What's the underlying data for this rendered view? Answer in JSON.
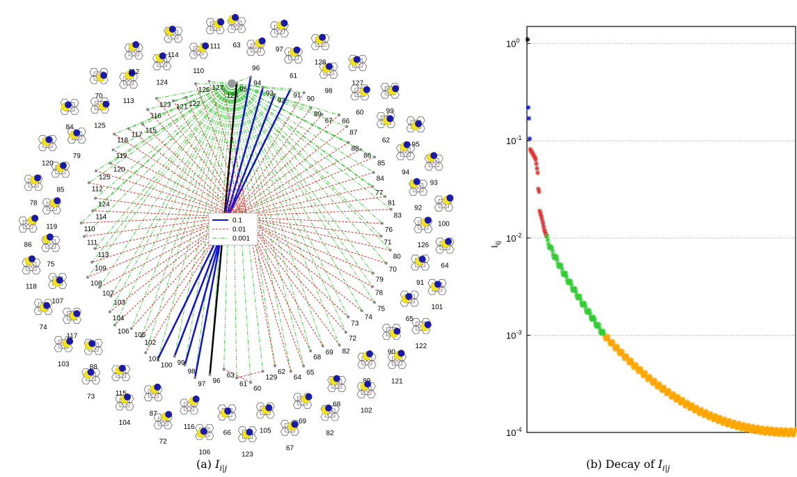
{
  "captions": {
    "left_prefix": "(a) ",
    "left_math_base": "I",
    "left_math_sub": "i|j",
    "right_prefix": "(b) Decay of ",
    "right_math_base": "I",
    "right_math_sub": "i|j"
  },
  "colors": {
    "strong": "#1010d0",
    "medium": "#e03030",
    "weak": "#33cc33",
    "top": "#000000",
    "tail": "#ffa500",
    "grid": "#888888"
  },
  "chart_data": [
    {
      "type": "network",
      "legend": [
        {
          "label": "0.1",
          "style": "solid",
          "color": "#1010d0"
        },
        {
          "label": "0.01",
          "style": "dashed",
          "color": "#e03030"
        },
        {
          "label": "0.001",
          "style": "dashdot",
          "color": "#33cc33"
        }
      ],
      "inner_labels": [
        "95",
        "94",
        "93",
        "92",
        "91",
        "90",
        "89",
        "67",
        "66",
        "87",
        "88",
        "86",
        "85",
        "84",
        "77",
        "81",
        "83",
        "76",
        "71",
        "80",
        "70",
        "79",
        "78",
        "75",
        "74",
        "73",
        "72",
        "82",
        "69",
        "68",
        "65",
        "64",
        "62",
        "129",
        "60",
        "61",
        "63",
        "96",
        "97",
        "98",
        "99",
        "100",
        "101",
        "102",
        "105",
        "106",
        "104",
        "103",
        "107",
        "108",
        "109",
        "113",
        "111",
        "110",
        "114",
        "124",
        "112",
        "125",
        "120",
        "119",
        "118",
        "117",
        "115",
        "116",
        "123",
        "121",
        "122",
        "126",
        "127",
        "128"
      ],
      "outer_labels": [
        "63",
        "96",
        "97",
        "61",
        "128",
        "98",
        "127",
        "60",
        "99",
        "62",
        "95",
        "94",
        "93",
        "92",
        "100",
        "126",
        "64",
        "91",
        "101",
        "65",
        "122",
        "90",
        "121",
        "89",
        "102",
        "68",
        "82",
        "69",
        "67",
        "105",
        "123",
        "66",
        "106",
        "116",
        "72",
        "87",
        "104",
        "115",
        "73",
        "88",
        "103",
        "117",
        "74",
        "107",
        "118",
        "75",
        "86",
        "119",
        "78",
        "85",
        "120",
        "79",
        "84",
        "125",
        "70",
        "113",
        "112",
        "124",
        "114",
        "110",
        "111"
      ],
      "edges": [
        {
          "a": "95",
          "b": "96",
          "strength": "top"
        },
        {
          "a": "94",
          "b": "97",
          "strength": "strong"
        },
        {
          "a": "93",
          "b": "98",
          "strength": "strong"
        },
        {
          "a": "92",
          "b": "99",
          "strength": "strong"
        },
        {
          "a": "91",
          "b": "100",
          "strength": "strong"
        },
        {
          "a": "90",
          "b": "101",
          "strength": "medium"
        },
        {
          "a": "89",
          "b": "102",
          "strength": "medium"
        },
        {
          "a": "67",
          "b": "105",
          "strength": "medium"
        },
        {
          "a": "66",
          "b": "106",
          "strength": "medium"
        },
        {
          "a": "87",
          "b": "104",
          "strength": "medium"
        },
        {
          "a": "88",
          "b": "103",
          "strength": "medium"
        },
        {
          "a": "86",
          "b": "107",
          "strength": "medium"
        },
        {
          "a": "85",
          "b": "108",
          "strength": "medium"
        },
        {
          "a": "84",
          "b": "109",
          "strength": "medium"
        },
        {
          "a": "77",
          "b": "113",
          "strength": "medium"
        },
        {
          "a": "81",
          "b": "111",
          "strength": "medium"
        },
        {
          "a": "83",
          "b": "110",
          "strength": "medium"
        },
        {
          "a": "76",
          "b": "114",
          "strength": "medium"
        },
        {
          "a": "71",
          "b": "124",
          "strength": "medium"
        },
        {
          "a": "80",
          "b": "112",
          "strength": "medium"
        },
        {
          "a": "70",
          "b": "125",
          "strength": "medium"
        },
        {
          "a": "79",
          "b": "120",
          "strength": "medium"
        },
        {
          "a": "78",
          "b": "119",
          "strength": "medium"
        },
        {
          "a": "75",
          "b": "118",
          "strength": "medium"
        },
        {
          "a": "74",
          "b": "117",
          "strength": "medium"
        },
        {
          "a": "73",
          "b": "115",
          "strength": "medium"
        },
        {
          "a": "72",
          "b": "116",
          "strength": "medium"
        },
        {
          "a": "82",
          "b": "123",
          "strength": "medium"
        },
        {
          "a": "69",
          "b": "121",
          "strength": "medium"
        },
        {
          "a": "68",
          "b": "122",
          "strength": "medium"
        },
        {
          "a": "65",
          "b": "126",
          "strength": "medium"
        },
        {
          "a": "64",
          "b": "127",
          "strength": "medium"
        },
        {
          "a": "62",
          "b": "128",
          "strength": "medium"
        },
        {
          "a": "129",
          "b": "61",
          "strength": "medium"
        },
        {
          "a": "60",
          "b": "63",
          "strength": "medium"
        }
      ]
    },
    {
      "type": "scatter",
      "title": "",
      "xlabel": "",
      "ylabel": "I",
      "ylabel_sub": "i|j",
      "yscale": "log",
      "ylim": [
        0.0001,
        1.5
      ],
      "xlim": [
        0,
        400
      ],
      "grid": true,
      "yticks": [
        {
          "base": "10",
          "exp": "0",
          "value": 1
        },
        {
          "base": "10",
          "exp": "-1",
          "value": 0.1
        },
        {
          "base": "10",
          "exp": "-2",
          "value": 0.01
        },
        {
          "base": "10",
          "exp": "-3",
          "value": 0.001
        },
        {
          "base": "10",
          "exp": "-4",
          "value": 0.0001
        }
      ],
      "series": [
        {
          "class": "top",
          "color": "#000000",
          "points": [
            [
              1,
              1.1
            ]
          ]
        },
        {
          "class": "strong",
          "color": "#1010d0",
          "points": [
            [
              2,
              0.22
            ],
            [
              3,
              0.17
            ],
            [
              4,
              0.105
            ]
          ]
        },
        {
          "class": "medium",
          "color": "#e03030",
          "points": [
            [
              5,
              0.082
            ],
            [
              6,
              0.079
            ],
            [
              7,
              0.077
            ],
            [
              8,
              0.075
            ],
            [
              9,
              0.073
            ],
            [
              10,
              0.071
            ],
            [
              11,
              0.069
            ],
            [
              12,
              0.067
            ],
            [
              13,
              0.064
            ],
            [
              14,
              0.058
            ],
            [
              15,
              0.052
            ],
            [
              16,
              0.047
            ],
            [
              17,
              0.032
            ],
            [
              18,
              0.03
            ],
            [
              19,
              0.019
            ],
            [
              20,
              0.018
            ],
            [
              21,
              0.017
            ],
            [
              22,
              0.016
            ],
            [
              23,
              0.015
            ],
            [
              24,
              0.014
            ],
            [
              25,
              0.013
            ],
            [
              26,
              0.012
            ],
            [
              27,
              0.0115
            ],
            [
              28,
              0.011
            ],
            [
              29,
              0.0105
            ]
          ]
        },
        {
          "class": "weak",
          "color": "#33cc33",
          "range": [
            30,
            115
          ],
          "start": 0.0098,
          "end": 0.001
        },
        {
          "class": "tail",
          "color": "#ffa500",
          "range": [
            116,
            400
          ],
          "start": 0.00099,
          "end": 0.0001
        }
      ]
    }
  ]
}
